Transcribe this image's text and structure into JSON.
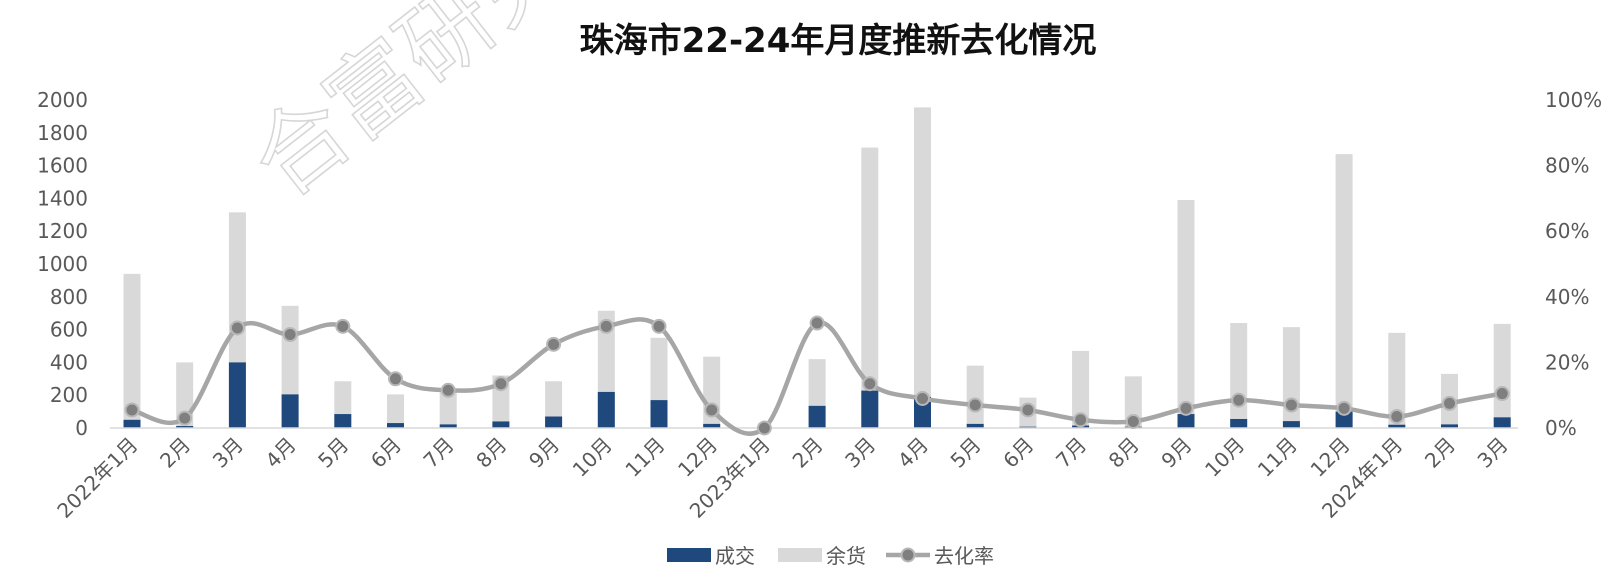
{
  "chart_data": {
    "type": "bar+line",
    "title": "珠海市22-24年月度推新去化情况",
    "watermark": "合富研究",
    "categories": [
      "2022年1月",
      "2月",
      "3月",
      "4月",
      "5月",
      "6月",
      "7月",
      "8月",
      "9月",
      "10月",
      "11月",
      "12月",
      "2023年1月",
      "2月",
      "3月",
      "4月",
      "5月",
      "6月",
      "7月",
      "8月",
      "9月",
      "10月",
      "11月",
      "12月",
      "2024年1月",
      "2月",
      "3月"
    ],
    "series": [
      {
        "name": "成交",
        "type": "bar",
        "axis": "left",
        "color": "#1F497D",
        "values": [
          50,
          12,
          400,
          205,
          85,
          30,
          22,
          40,
          70,
          220,
          170,
          25,
          0,
          135,
          228,
          190,
          25,
          8,
          15,
          8,
          85,
          55,
          42,
          100,
          20,
          22,
          65
        ]
      },
      {
        "name": "余货",
        "type": "bar",
        "axis": "left",
        "color": "#D9D9D9",
        "values": [
          940,
          400,
          1315,
          745,
          285,
          205,
          225,
          320,
          285,
          715,
          550,
          435,
          0,
          420,
          1710,
          1955,
          380,
          185,
          470,
          315,
          1390,
          640,
          615,
          1670,
          580,
          330,
          635
        ]
      },
      {
        "name": "去化率",
        "type": "line",
        "axis": "right",
        "color": "#A6A6A6",
        "values": [
          5.5,
          3.0,
          30.5,
          28.5,
          31.0,
          15.0,
          11.5,
          13.5,
          25.5,
          31.0,
          31.0,
          5.5,
          0,
          32.0,
          13.5,
          9.0,
          7.0,
          5.5,
          2.5,
          2.0,
          6.0,
          8.5,
          7.0,
          6.0,
          3.5,
          7.5,
          10.5
        ]
      }
    ],
    "y_left": {
      "min": 0,
      "max": 2000,
      "step": 200,
      "ticks": [
        "0",
        "200",
        "400",
        "600",
        "800",
        "1000",
        "1200",
        "1400",
        "1600",
        "1800",
        "2000"
      ]
    },
    "y_right": {
      "min": 0,
      "max": 100,
      "ticks": [
        "0%",
        "20%",
        "40%",
        "60%",
        "80%",
        "100%"
      ]
    },
    "grid": false,
    "legend_position": "bottom-center"
  }
}
